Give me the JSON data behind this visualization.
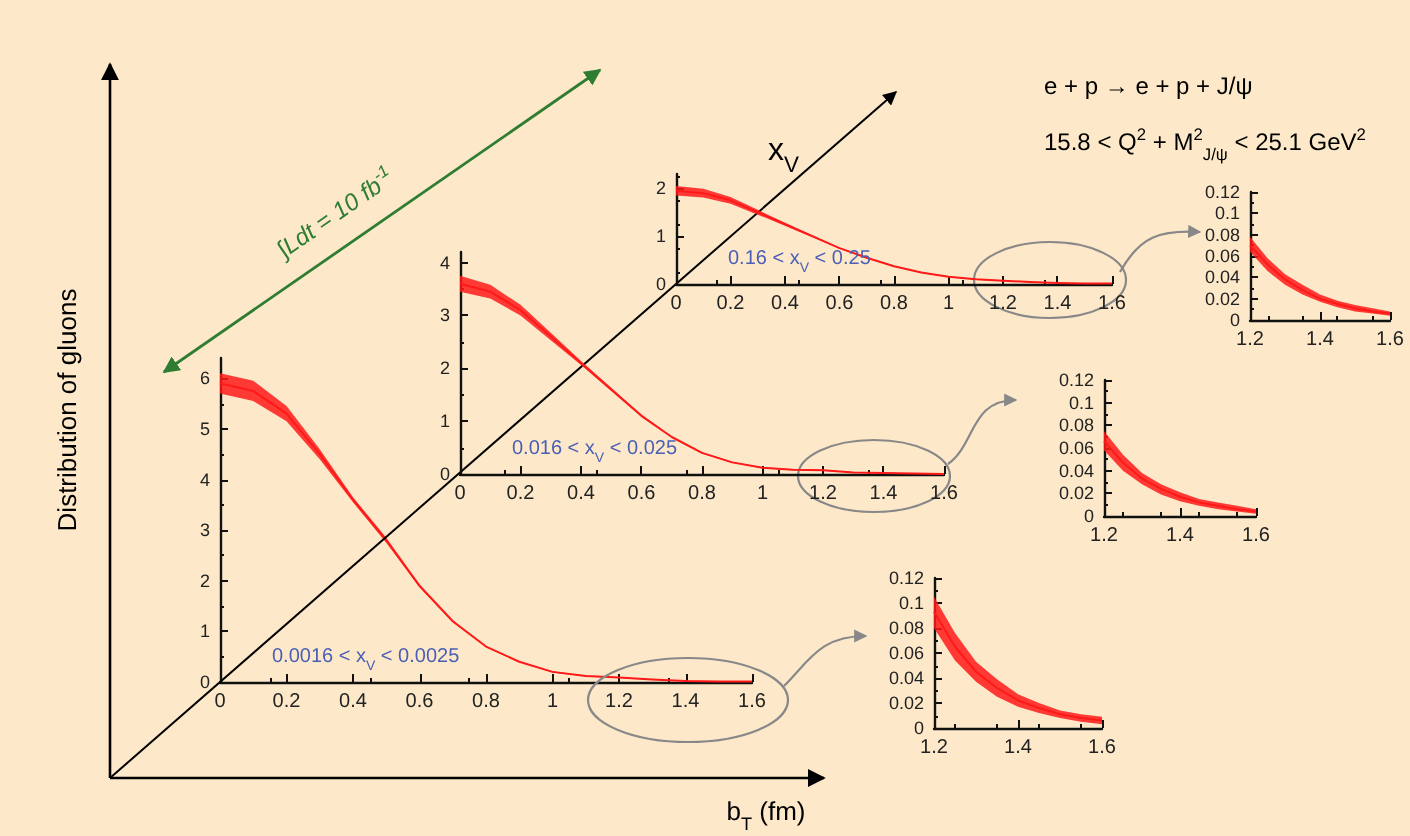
{
  "chart_data": [
    {
      "type": "line",
      "title": "0.0016 < x$_{V}$ < 0.0025",
      "xlabel": "b$_{T}$ (fm)",
      "ylabel": "Distribution of gluons",
      "annotations": [
        "x$_{V}$",
        "∫Ldt = 10 fb$^{-1}$",
        "e + p → e + p + J/ψ",
        "15.8 < Q$^{2}$ + M$^{2}$$_{J/ψ}$ < 25.1 GeV$^{2}$"
      ],
      "x": [
        0,
        0.1,
        0.2,
        0.3,
        0.4,
        0.5,
        0.6,
        0.7,
        0.8,
        0.9,
        1.0,
        1.1,
        1.2,
        1.3,
        1.4,
        1.5,
        1.6
      ],
      "series": [
        {
          "color": "#ff1a1a",
          "values": [
            5.9,
            5.75,
            5.3,
            4.5,
            3.6,
            2.8,
            1.9,
            1.2,
            0.7,
            0.4,
            0.2,
            0.12,
            0.09,
            0.05,
            0.02,
            0.01,
            0.01
          ],
          "lower": [
            5.7,
            5.55,
            5.15,
            4.4,
            3.55,
            2.75,
            1.87,
            1.18,
            0.69,
            0.39,
            0.19,
            0.11,
            0.08,
            0.04,
            0.02,
            0.01,
            0.0
          ],
          "upper": [
            6.1,
            5.95,
            5.45,
            4.6,
            3.65,
            2.85,
            1.93,
            1.22,
            0.71,
            0.41,
            0.21,
            0.13,
            0.1,
            0.05,
            0.03,
            0.01,
            0.01
          ]
        }
      ],
      "xlim": [
        0,
        1.6
      ],
      "xticks": [
        0,
        0.2,
        0.4,
        0.6,
        0.8,
        1,
        1.2,
        1.4,
        1.6
      ],
      "ylim": [
        0,
        6.4
      ],
      "yticks": [
        0,
        1,
        2,
        3,
        4,
        5,
        6
      ],
      "grid": false
    },
    {
      "type": "line",
      "title": "0.016 < x$_{V}$ < 0.025",
      "x": [
        0,
        0.1,
        0.2,
        0.3,
        0.4,
        0.5,
        0.6,
        0.7,
        0.8,
        0.9,
        1.0,
        1.1,
        1.2,
        1.3,
        1.4,
        1.5,
        1.6
      ],
      "series": [
        {
          "color": "#ff1a1a",
          "values": [
            3.6,
            3.45,
            3.1,
            2.6,
            2.1,
            1.6,
            1.1,
            0.7,
            0.4,
            0.22,
            0.12,
            0.08,
            0.07,
            0.03,
            0.02,
            0.01,
            0.0
          ],
          "lower": [
            3.45,
            3.32,
            3.0,
            2.53,
            2.06,
            1.57,
            1.08,
            0.69,
            0.39,
            0.21,
            0.11,
            0.07,
            0.06,
            0.03,
            0.01,
            0.01,
            0.0
          ],
          "upper": [
            3.75,
            3.58,
            3.2,
            2.67,
            2.14,
            1.63,
            1.12,
            0.71,
            0.41,
            0.23,
            0.13,
            0.09,
            0.08,
            0.04,
            0.02,
            0.01,
            0.01
          ]
        }
      ],
      "xlim": [
        0,
        1.6
      ],
      "xticks": [
        0,
        0.2,
        0.4,
        0.6,
        0.8,
        1,
        1.2,
        1.4,
        1.6
      ],
      "ylim": [
        0,
        4.2
      ],
      "yticks": [
        0,
        1,
        2,
        3,
        4
      ],
      "grid": false
    },
    {
      "type": "line",
      "title": "0.16 < x$_{V}$ < 0.25",
      "x": [
        0,
        0.1,
        0.2,
        0.3,
        0.4,
        0.5,
        0.6,
        0.7,
        0.8,
        0.9,
        1.0,
        1.1,
        1.2,
        1.3,
        1.4,
        1.5,
        1.6
      ],
      "series": [
        {
          "color": "#ff1a1a",
          "values": [
            1.95,
            1.9,
            1.75,
            1.5,
            1.25,
            1.0,
            0.75,
            0.55,
            0.37,
            0.24,
            0.15,
            0.1,
            0.07,
            0.04,
            0.02,
            0.01,
            0.01
          ],
          "lower": [
            1.85,
            1.81,
            1.68,
            1.45,
            1.22,
            0.98,
            0.74,
            0.54,
            0.36,
            0.23,
            0.14,
            0.09,
            0.06,
            0.03,
            0.02,
            0.01,
            0.0
          ],
          "upper": [
            2.05,
            1.99,
            1.82,
            1.55,
            1.28,
            1.02,
            0.76,
            0.56,
            0.38,
            0.25,
            0.16,
            0.11,
            0.08,
            0.04,
            0.02,
            0.01,
            0.01
          ]
        }
      ],
      "xlim": [
        0,
        1.6
      ],
      "xticks": [
        0,
        0.2,
        0.4,
        0.6,
        0.8,
        1,
        1.2,
        1.4,
        1.6
      ],
      "ylim": [
        0,
        2.3
      ],
      "yticks": [
        0,
        1,
        2
      ],
      "grid": false
    },
    {
      "type": "line",
      "x": [
        1.2,
        1.25,
        1.3,
        1.35,
        1.4,
        1.45,
        1.5,
        1.55,
        1.6
      ],
      "series": [
        {
          "color": "#ff1a1a",
          "values": [
            0.093,
            0.065,
            0.045,
            0.032,
            0.022,
            0.016,
            0.011,
            0.008,
            0.006
          ],
          "lower": [
            0.08,
            0.054,
            0.037,
            0.025,
            0.017,
            0.012,
            0.008,
            0.005,
            0.003
          ],
          "upper": [
            0.105,
            0.076,
            0.053,
            0.039,
            0.027,
            0.02,
            0.014,
            0.011,
            0.009
          ]
        }
      ],
      "xlim": [
        1.2,
        1.6
      ],
      "xticks": [
        1.2,
        1.4,
        1.6
      ],
      "ylim": [
        0,
        0.12
      ],
      "yticks": [
        0,
        0.02,
        0.04,
        0.06,
        0.08,
        0.1,
        0.12
      ],
      "grid": false
    },
    {
      "type": "line",
      "x": [
        1.2,
        1.25,
        1.3,
        1.35,
        1.4,
        1.45,
        1.5,
        1.55,
        1.6
      ],
      "series": [
        {
          "color": "#ff1a1a",
          "values": [
            0.066,
            0.047,
            0.033,
            0.024,
            0.017,
            0.012,
            0.009,
            0.006,
            0.004
          ],
          "lower": [
            0.058,
            0.04,
            0.028,
            0.019,
            0.013,
            0.009,
            0.006,
            0.004,
            0.002
          ],
          "upper": [
            0.075,
            0.054,
            0.038,
            0.028,
            0.021,
            0.015,
            0.012,
            0.009,
            0.006
          ]
        }
      ],
      "xlim": [
        1.2,
        1.6
      ],
      "xticks": [
        1.2,
        1.4,
        1.6
      ],
      "ylim": [
        0,
        0.12
      ],
      "yticks": [
        0,
        0.02,
        0.04,
        0.06,
        0.08,
        0.1,
        0.12
      ],
      "grid": false
    },
    {
      "type": "line",
      "x": [
        1.2,
        1.25,
        1.3,
        1.35,
        1.4,
        1.45,
        1.5,
        1.55,
        1.6
      ],
      "series": [
        {
          "color": "#ff1a1a",
          "values": [
            0.07,
            0.052,
            0.038,
            0.028,
            0.02,
            0.015,
            0.011,
            0.008,
            0.006
          ],
          "lower": [
            0.064,
            0.046,
            0.033,
            0.024,
            0.017,
            0.012,
            0.008,
            0.006,
            0.004
          ],
          "upper": [
            0.078,
            0.058,
            0.043,
            0.033,
            0.024,
            0.018,
            0.014,
            0.011,
            0.008
          ]
        }
      ],
      "xlim": [
        1.2,
        1.6
      ],
      "xticks": [
        1.2,
        1.4,
        1.6
      ],
      "ylim": [
        0,
        0.12
      ],
      "yticks": [
        0,
        0.02,
        0.04,
        0.06,
        0.08,
        0.1,
        0.12
      ],
      "grid": false
    }
  ]
}
